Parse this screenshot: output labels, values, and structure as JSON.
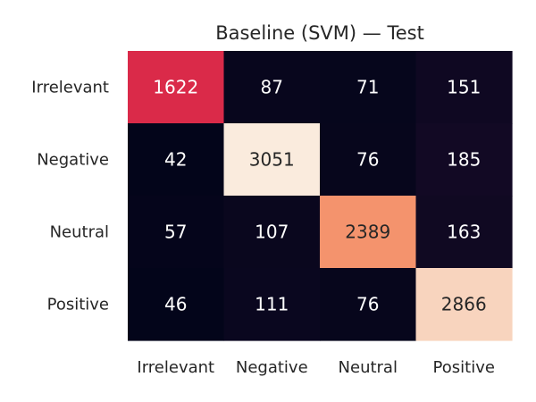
{
  "chart_data": {
    "type": "heatmap",
    "title": "Baseline (SVM) — Test",
    "xlabel": "",
    "ylabel": "",
    "x_categories": [
      "Irrelevant",
      "Negative",
      "Neutral",
      "Positive"
    ],
    "y_categories": [
      "Irrelevant",
      "Negative",
      "Neutral",
      "Positive"
    ],
    "values": [
      [
        1622,
        87,
        71,
        151
      ],
      [
        42,
        3051,
        76,
        185
      ],
      [
        57,
        107,
        2389,
        163
      ],
      [
        46,
        111,
        76,
        2866
      ]
    ],
    "colormap": "rocket",
    "annotations": true,
    "colorbar": false
  }
}
